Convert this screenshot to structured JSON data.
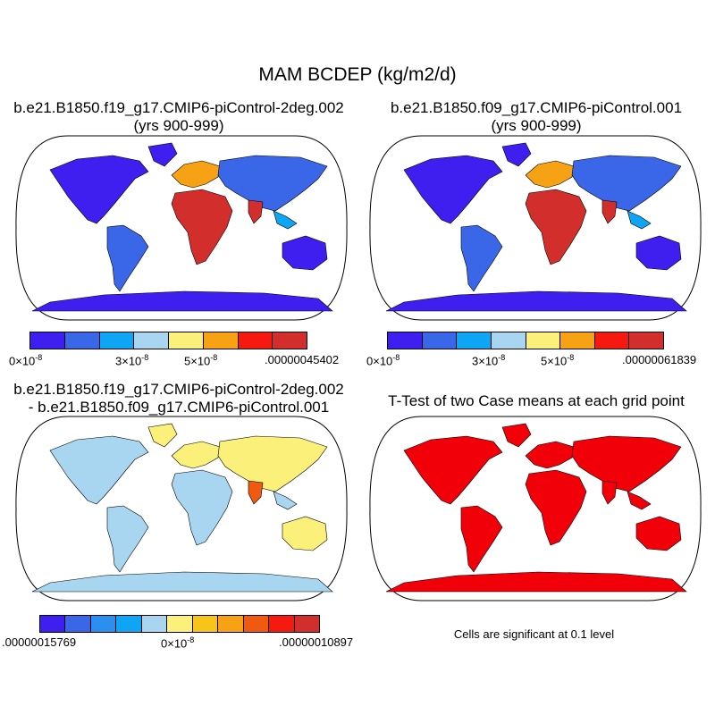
{
  "title": "MAM BCDEP (kg/m2/d)",
  "colors": {
    "seq": [
      "#3f1ff0",
      "#3a66e8",
      "#0ea5f5",
      "#a8d6f0",
      "#fbf07a",
      "#f7a114",
      "#f6190f",
      "#d12e2c"
    ],
    "diff": [
      "#3f1ff0",
      "#3a66e8",
      "#2b8ff0",
      "#0ea5f5",
      "#a8d6f0",
      "#fbf07a",
      "#f7c51a",
      "#f7a114",
      "#f05a10",
      "#f6190f",
      "#d12e2c"
    ],
    "sig": "#f2000a",
    "ocean": "#ffffff"
  },
  "panels": {
    "p1": {
      "title1": "b.e21.B1850.f19_g17.CMIP6-piControl-2deg.002",
      "title2": "(yrs 900-999)"
    },
    "p2": {
      "title1": "b.e21.B1850.f09_g17.CMIP6-piControl.001",
      "title2": "(yrs 900-999)"
    },
    "p3": {
      "title1": "b.e21.B1850.f19_g17.CMIP6-piControl-2deg.002",
      "title2": "- b.e21.B1850.f09_g17.CMIP6-piControl.001"
    },
    "p4": {
      "title1": "T-Test of two Case means at each grid point",
      "note": "Cells are significant at 0.1 level"
    }
  },
  "colorbars": {
    "cb1": {
      "l0": "0×10",
      "e0": "-8",
      "l1": "3×10",
      "e1": "-8",
      "l2": "5×10",
      "e2": "-8",
      "l3": ".00000045402"
    },
    "cb2": {
      "l0": "0×10",
      "e0": "-8",
      "l1": "3×10",
      "e1": "-8",
      "l2": "5×10",
      "e2": "-8",
      "l3": ".00000061839"
    },
    "cb3": {
      "l0": ".00000015769",
      "l1": "0×10",
      "e1": "-8",
      "l2": ".00000010897"
    }
  },
  "chart_data": [
    {
      "type": "heatmap",
      "title": "b.e21.B1850.f19_g17.CMIP6-piControl-2deg.002 (yrs 900-999)",
      "projection": "Robinson",
      "colorbar_labels": [
        "0×10-8",
        "3×10-8",
        "5×10-8",
        ".00000045402"
      ],
      "colorbar_bins": 8
    },
    {
      "type": "heatmap",
      "title": "b.e21.B1850.f09_g17.CMIP6-piControl.001 (yrs 900-999)",
      "projection": "Robinson",
      "colorbar_labels": [
        "0×10-8",
        "3×10-8",
        "5×10-8",
        ".00000061839"
      ],
      "colorbar_bins": 8
    },
    {
      "type": "heatmap",
      "title": "b.e21.B1850.f19_g17.CMIP6-piControl-2deg.002 - b.e21.B1850.f09_g17.CMIP6-piControl.001",
      "projection": "Robinson",
      "colorbar_labels": [
        ".00000015769",
        "0×10-8",
        ".00000010897"
      ],
      "colorbar_bins": 11
    },
    {
      "type": "heatmap",
      "title": "T-Test of two Case means at each grid point",
      "projection": "Robinson",
      "note": "Cells are significant at 0.1 level"
    }
  ]
}
